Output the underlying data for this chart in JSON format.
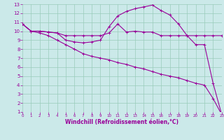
{
  "xlabel": "Windchill (Refroidissement éolien,°C)",
  "bg_color": "#cbe9e9",
  "line_color": "#990099",
  "grid_color": "#99ccbb",
  "xmin": 0,
  "xmax": 23,
  "ymin": 1,
  "ymax": 13,
  "line1_x": [
    0,
    1,
    2,
    3,
    4,
    5,
    6,
    7,
    8,
    9,
    10,
    11,
    12,
    13,
    14,
    15,
    16,
    17,
    18,
    19,
    20,
    21,
    22,
    23
  ],
  "line1_y": [
    10.8,
    10.0,
    10.0,
    9.9,
    9.8,
    9.5,
    9.5,
    9.5,
    9.5,
    9.5,
    9.8,
    10.8,
    9.9,
    10.0,
    9.9,
    9.9,
    9.5,
    9.5,
    9.5,
    9.5,
    9.5,
    9.5,
    9.5,
    9.5
  ],
  "line2_x": [
    0,
    1,
    2,
    3,
    4,
    5,
    6,
    7,
    8,
    9,
    10,
    11,
    12,
    13,
    14,
    15,
    16,
    17,
    18,
    19,
    20,
    21,
    22,
    23
  ],
  "line2_y": [
    10.8,
    10.0,
    10.0,
    9.9,
    9.8,
    9.0,
    8.8,
    8.7,
    8.8,
    9.0,
    10.5,
    11.7,
    12.2,
    12.5,
    12.7,
    12.9,
    12.3,
    11.8,
    10.8,
    9.5,
    8.5,
    8.5,
    4.2,
    0.7
  ],
  "line3_x": [
    0,
    1,
    2,
    3,
    4,
    5,
    6,
    7,
    8,
    9,
    10,
    11,
    12,
    13,
    14,
    15,
    16,
    17,
    18,
    19,
    20,
    21,
    22,
    23
  ],
  "line3_y": [
    10.8,
    10.0,
    9.8,
    9.5,
    9.0,
    8.5,
    8.0,
    7.5,
    7.2,
    7.0,
    6.8,
    6.5,
    6.3,
    6.0,
    5.8,
    5.5,
    5.2,
    5.0,
    4.8,
    4.5,
    4.2,
    4.0,
    2.5,
    0.7
  ]
}
